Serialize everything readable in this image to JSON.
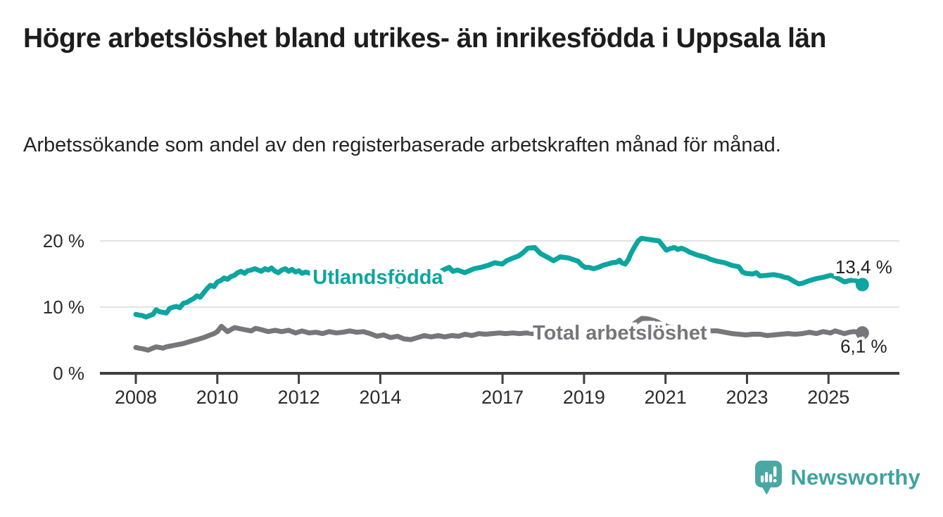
{
  "header": {
    "title": "Högre arbetslöshet bland utrikes- än inrikesfödda i Uppsala län",
    "subtitle": "Arbetssökande som andel av den registerbaserade arbetskraften månad för månad."
  },
  "footer": {
    "logo_text": "Newsworthy"
  },
  "colors": {
    "accent_teal": "#0ca5a0",
    "line_gray": "#76767b",
    "axis": "#3f3f3f",
    "grid": "#d9d9d9",
    "tick_text": "#2b2b2b",
    "value_text": "#1f1f1f",
    "logo_teal": "#4aa8a4"
  },
  "chart_data": {
    "type": "line",
    "title": "Högre arbetslöshet bland utrikes- än inrikesfödda i Uppsala län",
    "xlabel": "",
    "ylabel": "%",
    "x_range": [
      2007.9,
      2026.2
    ],
    "ylim": [
      0,
      22
    ],
    "grid": "horizontal",
    "legend_position": "inline-labels",
    "y_ticks": [
      {
        "value": 0,
        "label": "0 %"
      },
      {
        "value": 10,
        "label": "10 %"
      },
      {
        "value": 20,
        "label": "20 %"
      }
    ],
    "x_ticks": [
      {
        "year": 2008,
        "label": "2008"
      },
      {
        "year": 2010,
        "label": "2010"
      },
      {
        "year": 2012,
        "label": "2012"
      },
      {
        "year": 2014,
        "label": "2014"
      },
      {
        "year": 2017,
        "label": "2017"
      },
      {
        "year": 2019,
        "label": "2019"
      },
      {
        "year": 2021,
        "label": "2021"
      },
      {
        "year": 2023,
        "label": "2023"
      },
      {
        "year": 2025,
        "label": "2025"
      }
    ],
    "series": [
      {
        "name": "Utlandsfödda",
        "color": "#0ca5a0",
        "end_label": "13,4 %",
        "end_value": 13.4,
        "label_anchor": {
          "year": 2013.94,
          "value": 14.6
        },
        "points": [
          [
            2008.0,
            8.9
          ],
          [
            2008.08,
            8.8
          ],
          [
            2008.17,
            8.7
          ],
          [
            2008.25,
            8.5
          ],
          [
            2008.33,
            8.7
          ],
          [
            2008.42,
            8.9
          ],
          [
            2008.5,
            9.6
          ],
          [
            2008.58,
            9.3
          ],
          [
            2008.67,
            9.2
          ],
          [
            2008.75,
            9.1
          ],
          [
            2008.83,
            9.8
          ],
          [
            2008.92,
            10.0
          ],
          [
            2009.0,
            10.1
          ],
          [
            2009.08,
            9.9
          ],
          [
            2009.17,
            10.6
          ],
          [
            2009.25,
            10.7
          ],
          [
            2009.33,
            11.0
          ],
          [
            2009.42,
            11.3
          ],
          [
            2009.5,
            11.7
          ],
          [
            2009.58,
            11.5
          ],
          [
            2009.67,
            12.2
          ],
          [
            2009.75,
            12.8
          ],
          [
            2009.83,
            13.3
          ],
          [
            2009.92,
            13.1
          ],
          [
            2010.0,
            13.8
          ],
          [
            2010.08,
            14.0
          ],
          [
            2010.17,
            14.4
          ],
          [
            2010.25,
            14.2
          ],
          [
            2010.33,
            14.6
          ],
          [
            2010.42,
            14.8
          ],
          [
            2010.5,
            15.2
          ],
          [
            2010.58,
            15.4
          ],
          [
            2010.67,
            15.1
          ],
          [
            2010.75,
            15.5
          ],
          [
            2010.83,
            15.6
          ],
          [
            2010.92,
            15.8
          ],
          [
            2011.0,
            15.6
          ],
          [
            2011.08,
            15.4
          ],
          [
            2011.17,
            15.8
          ],
          [
            2011.25,
            15.6
          ],
          [
            2011.33,
            15.9
          ],
          [
            2011.42,
            15.4
          ],
          [
            2011.5,
            15.2
          ],
          [
            2011.58,
            15.6
          ],
          [
            2011.67,
            15.8
          ],
          [
            2011.75,
            15.4
          ],
          [
            2011.83,
            15.7
          ],
          [
            2011.92,
            15.3
          ],
          [
            2012.0,
            15.5
          ],
          [
            2012.08,
            15.1
          ],
          [
            2012.17,
            15.3
          ],
          [
            2012.33,
            15.0
          ],
          [
            2012.5,
            15.2
          ],
          [
            2012.67,
            14.9
          ],
          [
            2012.83,
            15.1
          ],
          [
            2013.0,
            14.9
          ],
          [
            2013.17,
            14.8
          ],
          [
            2013.33,
            14.6
          ],
          [
            2013.5,
            14.5
          ],
          [
            2013.67,
            14.3
          ],
          [
            2013.83,
            14.2
          ],
          [
            2014.0,
            14.3
          ],
          [
            2014.17,
            13.9
          ],
          [
            2014.33,
            13.5
          ],
          [
            2014.45,
            13.2
          ],
          [
            2014.58,
            13.6
          ],
          [
            2014.75,
            14.0
          ],
          [
            2014.92,
            14.3
          ],
          [
            2015.08,
            14.6
          ],
          [
            2015.25,
            14.9
          ],
          [
            2015.42,
            15.2
          ],
          [
            2015.58,
            15.7
          ],
          [
            2015.69,
            16.0
          ],
          [
            2015.78,
            15.4
          ],
          [
            2015.9,
            15.6
          ],
          [
            2016.07,
            15.2
          ],
          [
            2016.3,
            15.8
          ],
          [
            2016.47,
            16.0
          ],
          [
            2016.64,
            16.3
          ],
          [
            2016.81,
            16.7
          ],
          [
            2016.99,
            16.5
          ],
          [
            2017.1,
            17.0
          ],
          [
            2017.25,
            17.4
          ],
          [
            2017.39,
            17.7
          ],
          [
            2017.5,
            18.2
          ],
          [
            2017.62,
            18.9
          ],
          [
            2017.79,
            19.0
          ],
          [
            2017.93,
            18.1
          ],
          [
            2018.14,
            17.4
          ],
          [
            2018.25,
            17.0
          ],
          [
            2018.42,
            17.6
          ],
          [
            2018.63,
            17.4
          ],
          [
            2018.86,
            16.9
          ],
          [
            2018.95,
            16.3
          ],
          [
            2019.03,
            16.0
          ],
          [
            2019.12,
            16.0
          ],
          [
            2019.23,
            15.8
          ],
          [
            2019.35,
            16.0
          ],
          [
            2019.46,
            16.3
          ],
          [
            2019.58,
            16.5
          ],
          [
            2019.69,
            16.7
          ],
          [
            2019.81,
            16.8
          ],
          [
            2019.87,
            17.1
          ],
          [
            2019.92,
            16.7
          ],
          [
            2020.01,
            16.5
          ],
          [
            2020.09,
            17.2
          ],
          [
            2020.15,
            18.1
          ],
          [
            2020.24,
            19.1
          ],
          [
            2020.33,
            20.0
          ],
          [
            2020.41,
            20.4
          ],
          [
            2020.5,
            20.3
          ],
          [
            2020.61,
            20.2
          ],
          [
            2020.73,
            20.1
          ],
          [
            2020.84,
            20.0
          ],
          [
            2020.93,
            19.3
          ],
          [
            2021.02,
            18.6
          ],
          [
            2021.1,
            18.8
          ],
          [
            2021.22,
            19.0
          ],
          [
            2021.3,
            18.7
          ],
          [
            2021.39,
            18.9
          ],
          [
            2021.51,
            18.6
          ],
          [
            2021.59,
            18.3
          ],
          [
            2021.68,
            18.1
          ],
          [
            2021.76,
            17.9
          ],
          [
            2021.88,
            17.7
          ],
          [
            2022.0,
            17.5
          ],
          [
            2022.11,
            17.2
          ],
          [
            2022.28,
            16.9
          ],
          [
            2022.45,
            16.7
          ],
          [
            2022.63,
            16.3
          ],
          [
            2022.8,
            16.1
          ],
          [
            2022.89,
            15.3
          ],
          [
            2022.97,
            15.1
          ],
          [
            2023.14,
            15.0
          ],
          [
            2023.23,
            15.2
          ],
          [
            2023.32,
            14.7
          ],
          [
            2023.49,
            14.8
          ],
          [
            2023.66,
            14.9
          ],
          [
            2023.83,
            14.7
          ],
          [
            2023.92,
            14.5
          ],
          [
            2024.01,
            14.4
          ],
          [
            2024.18,
            13.8
          ],
          [
            2024.27,
            13.5
          ],
          [
            2024.36,
            13.6
          ],
          [
            2024.53,
            14.0
          ],
          [
            2024.7,
            14.3
          ],
          [
            2024.87,
            14.5
          ],
          [
            2025.05,
            14.8
          ],
          [
            2025.16,
            14.6
          ],
          [
            2025.28,
            14.2
          ],
          [
            2025.39,
            13.8
          ],
          [
            2025.51,
            14.0
          ],
          [
            2025.62,
            14.1
          ],
          [
            2025.74,
            13.8
          ],
          [
            2025.83,
            13.4
          ]
        ]
      },
      {
        "name": "Total arbetslöshet",
        "color": "#76767b",
        "end_label": "6,1 %",
        "end_value": 6.1,
        "label_anchor": {
          "year": 2019.88,
          "value": 6.15
        },
        "points": [
          [
            2008.0,
            3.9
          ],
          [
            2008.08,
            3.8
          ],
          [
            2008.17,
            3.7
          ],
          [
            2008.3,
            3.5
          ],
          [
            2008.42,
            3.8
          ],
          [
            2008.5,
            4.0
          ],
          [
            2008.58,
            3.9
          ],
          [
            2008.67,
            3.8
          ],
          [
            2008.75,
            4.0
          ],
          [
            2008.83,
            4.1
          ],
          [
            2008.92,
            4.2
          ],
          [
            2009.0,
            4.3
          ],
          [
            2009.17,
            4.5
          ],
          [
            2009.33,
            4.8
          ],
          [
            2009.5,
            5.1
          ],
          [
            2009.67,
            5.4
          ],
          [
            2009.83,
            5.8
          ],
          [
            2009.92,
            6.0
          ],
          [
            2010.0,
            6.3
          ],
          [
            2010.1,
            7.1
          ],
          [
            2010.25,
            6.3
          ],
          [
            2010.42,
            6.9
          ],
          [
            2010.58,
            6.7
          ],
          [
            2010.75,
            6.5
          ],
          [
            2010.83,
            6.4
          ],
          [
            2010.94,
            6.8
          ],
          [
            2011.08,
            6.6
          ],
          [
            2011.25,
            6.3
          ],
          [
            2011.42,
            6.5
          ],
          [
            2011.58,
            6.3
          ],
          [
            2011.75,
            6.5
          ],
          [
            2011.92,
            6.1
          ],
          [
            2012.08,
            6.4
          ],
          [
            2012.25,
            6.1
          ],
          [
            2012.42,
            6.2
          ],
          [
            2012.58,
            6.0
          ],
          [
            2012.75,
            6.3
          ],
          [
            2012.92,
            6.1
          ],
          [
            2013.08,
            6.2
          ],
          [
            2013.25,
            6.4
          ],
          [
            2013.42,
            6.2
          ],
          [
            2013.58,
            6.3
          ],
          [
            2013.75,
            6.0
          ],
          [
            2013.92,
            5.6
          ],
          [
            2014.08,
            5.8
          ],
          [
            2014.25,
            5.4
          ],
          [
            2014.42,
            5.6
          ],
          [
            2014.58,
            5.2
          ],
          [
            2014.75,
            5.1
          ],
          [
            2014.92,
            5.4
          ],
          [
            2015.08,
            5.7
          ],
          [
            2015.25,
            5.5
          ],
          [
            2015.42,
            5.7
          ],
          [
            2015.58,
            5.5
          ],
          [
            2015.75,
            5.7
          ],
          [
            2015.92,
            5.6
          ],
          [
            2016.08,
            5.9
          ],
          [
            2016.25,
            5.7
          ],
          [
            2016.42,
            6.0
          ],
          [
            2016.58,
            5.9
          ],
          [
            2016.75,
            6.0
          ],
          [
            2016.92,
            6.1
          ],
          [
            2017.08,
            6.0
          ],
          [
            2017.25,
            6.1
          ],
          [
            2017.42,
            6.0
          ],
          [
            2017.58,
            6.1
          ],
          [
            2017.75,
            6.0
          ],
          [
            2017.92,
            6.2
          ],
          [
            2018.08,
            6.1
          ],
          [
            2018.25,
            6.0
          ],
          [
            2018.42,
            5.9
          ],
          [
            2018.58,
            6.0
          ],
          [
            2018.75,
            5.9
          ],
          [
            2018.92,
            5.8
          ],
          [
            2019.08,
            5.7
          ],
          [
            2019.25,
            5.6
          ],
          [
            2019.42,
            5.7
          ],
          [
            2019.58,
            5.6
          ],
          [
            2019.75,
            5.8
          ],
          [
            2019.92,
            6.0
          ],
          [
            2020.08,
            6.6
          ],
          [
            2020.25,
            7.6
          ],
          [
            2020.42,
            8.3
          ],
          [
            2020.58,
            8.2
          ],
          [
            2020.75,
            7.9
          ],
          [
            2020.92,
            7.4
          ],
          [
            2021.08,
            7.0
          ],
          [
            2021.25,
            6.9
          ],
          [
            2021.42,
            6.7
          ],
          [
            2021.58,
            6.5
          ],
          [
            2021.75,
            6.4
          ],
          [
            2021.92,
            6.3
          ],
          [
            2022.08,
            6.4
          ],
          [
            2022.28,
            6.4
          ],
          [
            2022.45,
            6.2
          ],
          [
            2022.63,
            6.0
          ],
          [
            2022.8,
            5.9
          ],
          [
            2022.97,
            5.8
          ],
          [
            2023.14,
            5.9
          ],
          [
            2023.32,
            5.9
          ],
          [
            2023.49,
            5.7
          ],
          [
            2023.66,
            5.8
          ],
          [
            2023.83,
            5.9
          ],
          [
            2024.01,
            6.0
          ],
          [
            2024.18,
            5.9
          ],
          [
            2024.36,
            6.0
          ],
          [
            2024.53,
            6.2
          ],
          [
            2024.7,
            6.0
          ],
          [
            2024.87,
            6.3
          ],
          [
            2025.05,
            6.1
          ],
          [
            2025.16,
            6.4
          ],
          [
            2025.28,
            6.2
          ],
          [
            2025.39,
            6.0
          ],
          [
            2025.51,
            6.2
          ],
          [
            2025.62,
            6.3
          ],
          [
            2025.74,
            6.2
          ],
          [
            2025.83,
            6.1
          ]
        ]
      }
    ]
  }
}
